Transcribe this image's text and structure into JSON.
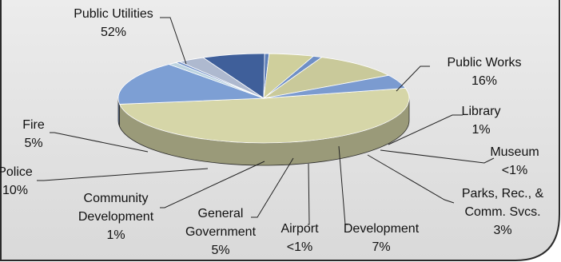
{
  "chart_data": {
    "type": "pie",
    "style": "3d exploded pie",
    "slices": [
      {
        "name": "Public Utilities",
        "pct_label": "52%",
        "value": 52,
        "color": "#d6d6a8"
      },
      {
        "name": "Public Works",
        "pct_label": "16%",
        "value": 16,
        "color": "#7d9fd4"
      },
      {
        "name": "Library",
        "pct_label": "1%",
        "value": 1,
        "color": "#bcd3e0"
      },
      {
        "name": "Museum",
        "pct_label": "<1%",
        "value": 0.5,
        "color": "#6f8fc8"
      },
      {
        "name": "Parks, Rec., & Comm. Svcs.",
        "pct_label": "3%",
        "value": 3,
        "color": "#aeb9cf"
      },
      {
        "name": "Development",
        "pct_label": "7%",
        "value": 7,
        "color": "#3f5f9a"
      },
      {
        "name": "Airport",
        "pct_label": "<1%",
        "value": 0.5,
        "color": "#5f7fb8"
      },
      {
        "name": "General Government",
        "pct_label": "5%",
        "value": 5,
        "color": "#cfcf9c"
      },
      {
        "name": "Community Development",
        "pct_label": "1%",
        "value": 1,
        "color": "#6f8fc6"
      },
      {
        "name": "Police",
        "pct_label": "10%",
        "value": 10,
        "color": "#c9c99a"
      },
      {
        "name": "Fire",
        "pct_label": "5%",
        "value": 5,
        "color": "#7b9bd0"
      }
    ]
  },
  "colors": {
    "panel_fill": "#e4e4e4",
    "panel_border": "#2a2a2a",
    "text": "#111111"
  }
}
